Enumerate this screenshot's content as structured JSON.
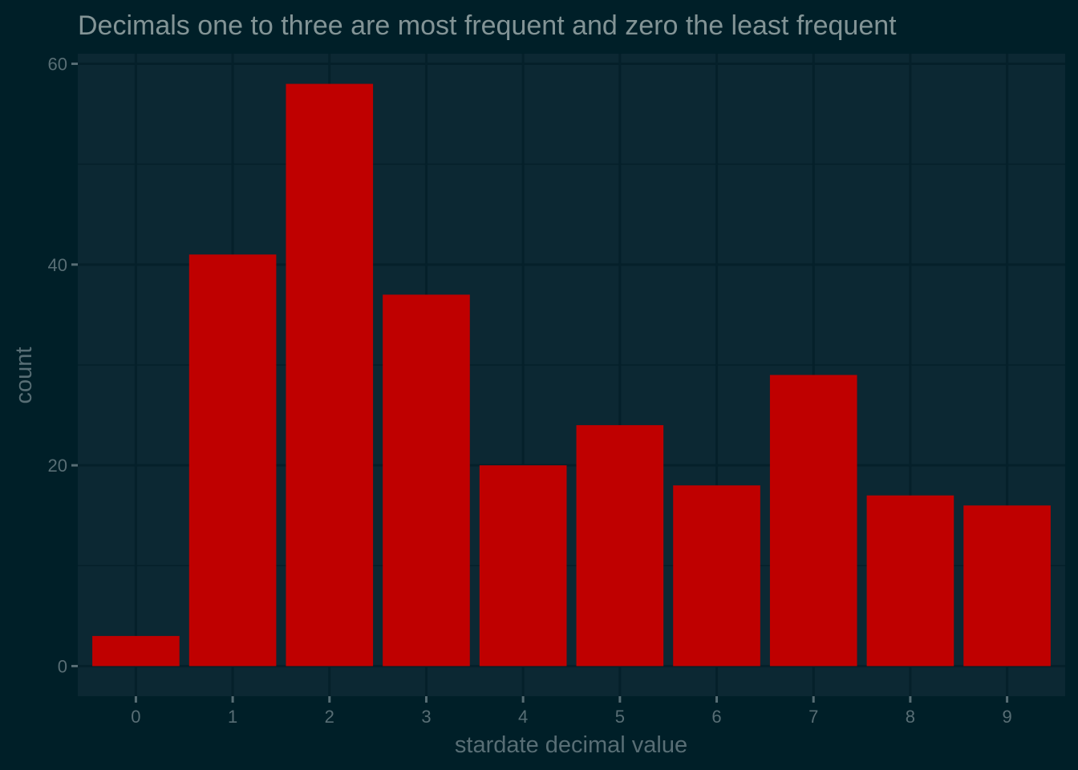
{
  "chart_data": {
    "type": "bar",
    "title": "Decimals one to three are most frequent and zero the least frequent",
    "xlabel": "stardate decimal value",
    "ylabel": "count",
    "categories": [
      "0",
      "1",
      "2",
      "3",
      "4",
      "5",
      "6",
      "7",
      "8",
      "9"
    ],
    "values": [
      3,
      41,
      58,
      37,
      20,
      24,
      18,
      29,
      17,
      16
    ],
    "ylim": [
      -3,
      61
    ],
    "yticks": [
      0,
      20,
      40,
      60
    ],
    "grid": true,
    "legend": "none",
    "colors": {
      "bar": "#bf0000",
      "background": "#001f28",
      "panel": "#0c2833",
      "grid": "#05202a",
      "text": "#586e75",
      "title": "#839496"
    }
  }
}
